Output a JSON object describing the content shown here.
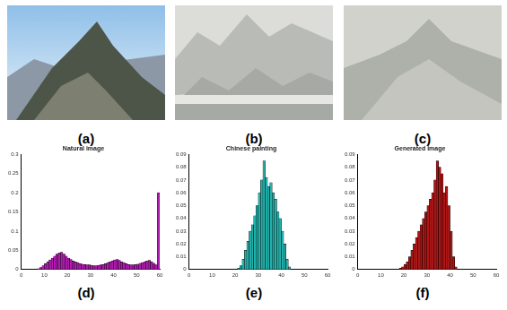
{
  "figure": {
    "image_labels": [
      "(a)",
      "(b)",
      "(c)"
    ]
  },
  "chart_data": [
    {
      "type": "histogram",
      "title": "Natural image",
      "panel_label": "(d)",
      "color": "#b21bb2",
      "bins": [
        0,
        1,
        2,
        3,
        4,
        5,
        6,
        7,
        8,
        9,
        10,
        11,
        12,
        13,
        14,
        15,
        16,
        17,
        18,
        19,
        20,
        21,
        22,
        23,
        24,
        25,
        26,
        27,
        28,
        29,
        30,
        31,
        32,
        33,
        34,
        35,
        36,
        37,
        38,
        39,
        40,
        41,
        42,
        43,
        44,
        45,
        46,
        47,
        48,
        49,
        50,
        51,
        52,
        53,
        54,
        55,
        56,
        57,
        58,
        59,
        60
      ],
      "values": [
        0,
        0,
        0,
        0,
        0,
        0,
        0,
        0.002,
        0.005,
        0.01,
        0.015,
        0.02,
        0.025,
        0.03,
        0.035,
        0.04,
        0.043,
        0.045,
        0.04,
        0.035,
        0.03,
        0.026,
        0.022,
        0.02,
        0.018,
        0.015,
        0.014,
        0.013,
        0.012,
        0.012,
        0.011,
        0.01,
        0.01,
        0.011,
        0.012,
        0.013,
        0.015,
        0.018,
        0.02,
        0.022,
        0.025,
        0.026,
        0.024,
        0.02,
        0.018,
        0.015,
        0.013,
        0.012,
        0.012,
        0.013,
        0.014,
        0.016,
        0.018,
        0.02,
        0.022,
        0.024,
        0.02,
        0.016,
        0.012,
        0.2
      ],
      "xlim": [
        0,
        60
      ],
      "xticks": [
        0,
        10,
        20,
        30,
        40,
        50,
        60
      ],
      "ylim": [
        0,
        0.3
      ],
      "yticks": [
        0,
        0.05,
        0.1,
        0.15,
        0.2,
        0.25,
        0.3
      ]
    },
    {
      "type": "histogram",
      "title": "Chinese painting",
      "panel_label": "(e)",
      "color": "#22b3ad",
      "bins": [
        0,
        1,
        2,
        3,
        4,
        5,
        6,
        7,
        8,
        9,
        10,
        11,
        12,
        13,
        14,
        15,
        16,
        17,
        18,
        19,
        20,
        21,
        22,
        23,
        24,
        25,
        26,
        27,
        28,
        29,
        30,
        31,
        32,
        33,
        34,
        35,
        36,
        37,
        38,
        39,
        40,
        41,
        42,
        43,
        44,
        45,
        46,
        47,
        48,
        49,
        50,
        51,
        52,
        53,
        54,
        55,
        56,
        57,
        58,
        59,
        60
      ],
      "values": [
        0,
        0,
        0,
        0,
        0,
        0,
        0,
        0,
        0,
        0,
        0,
        0,
        0,
        0,
        0,
        0,
        0,
        0,
        0,
        0,
        0,
        0.001,
        0.003,
        0.008,
        0.015,
        0.022,
        0.03,
        0.035,
        0.042,
        0.05,
        0.06,
        0.07,
        0.085,
        0.072,
        0.065,
        0.068,
        0.06,
        0.055,
        0.045,
        0.04,
        0.03,
        0.02,
        0.008,
        0.002,
        0,
        0,
        0,
        0,
        0,
        0,
        0,
        0,
        0,
        0,
        0,
        0,
        0,
        0,
        0,
        0
      ],
      "xlim": [
        0,
        60
      ],
      "xticks": [
        0,
        10,
        20,
        30,
        40,
        50,
        60
      ],
      "ylim": [
        0,
        0.09
      ],
      "yticks": [
        0,
        0.01,
        0.02,
        0.03,
        0.04,
        0.05,
        0.06,
        0.07,
        0.08,
        0.09
      ]
    },
    {
      "type": "histogram",
      "title": "Generated image",
      "panel_label": "(f)",
      "color": "#b01515",
      "bins": [
        0,
        1,
        2,
        3,
        4,
        5,
        6,
        7,
        8,
        9,
        10,
        11,
        12,
        13,
        14,
        15,
        16,
        17,
        18,
        19,
        20,
        21,
        22,
        23,
        24,
        25,
        26,
        27,
        28,
        29,
        30,
        31,
        32,
        33,
        34,
        35,
        36,
        37,
        38,
        39,
        40,
        41,
        42,
        43,
        44,
        45,
        46,
        47,
        48,
        49,
        50,
        51,
        52,
        53,
        54,
        55,
        56,
        57,
        58,
        59,
        60
      ],
      "values": [
        0,
        0,
        0,
        0,
        0,
        0,
        0,
        0,
        0,
        0,
        0,
        0,
        0,
        0,
        0,
        0,
        0,
        0,
        0.001,
        0.002,
        0.004,
        0.006,
        0.01,
        0.015,
        0.02,
        0.025,
        0.03,
        0.035,
        0.04,
        0.045,
        0.05,
        0.055,
        0.06,
        0.07,
        0.085,
        0.08,
        0.075,
        0.06,
        0.065,
        0.05,
        0.03,
        0.01,
        0.002,
        0,
        0,
        0,
        0,
        0,
        0,
        0,
        0,
        0,
        0,
        0,
        0,
        0,
        0,
        0,
        0,
        0
      ],
      "xlim": [
        0,
        60
      ],
      "xticks": [
        0,
        10,
        20,
        30,
        40,
        50,
        60
      ],
      "ylim": [
        0,
        0.09
      ],
      "yticks": [
        0,
        0.01,
        0.02,
        0.03,
        0.04,
        0.05,
        0.06,
        0.07,
        0.08,
        0.09
      ]
    }
  ]
}
